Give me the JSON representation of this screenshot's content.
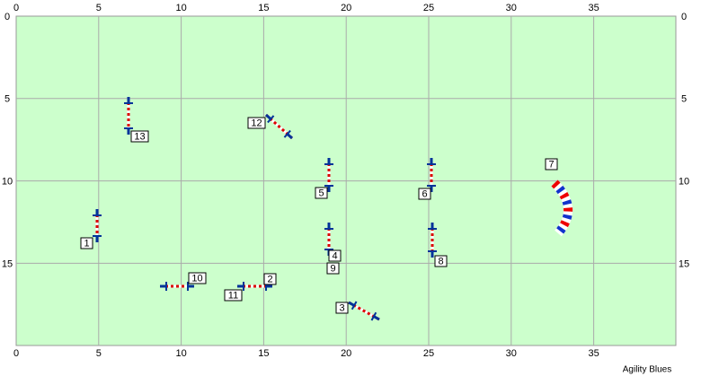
{
  "course_map": {
    "x_ticks": [
      "0",
      "5",
      "10",
      "15",
      "20",
      "25",
      "30",
      "35"
    ],
    "y_ticks": [
      "0",
      "5",
      "10",
      "15"
    ],
    "obstacles": [
      {
        "label": "1"
      },
      {
        "label": "2"
      },
      {
        "label": "3"
      },
      {
        "label": "4"
      },
      {
        "label": "5"
      },
      {
        "label": "6"
      },
      {
        "label": "7"
      },
      {
        "label": "8"
      },
      {
        "label": "9"
      },
      {
        "label": "10"
      },
      {
        "label": "11"
      },
      {
        "label": "12"
      },
      {
        "label": "13"
      }
    ],
    "footer": "Agility Blues"
  }
}
